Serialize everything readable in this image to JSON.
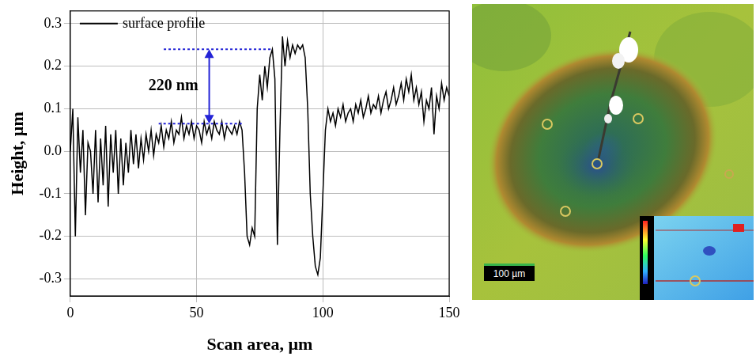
{
  "chart_data": {
    "type": "line",
    "x_label": "Scan area, µm",
    "y_label": "Height, µm",
    "xlim": [
      0,
      150
    ],
    "xticks": [
      0,
      50,
      100,
      150
    ],
    "ylim": [
      -0.34,
      0.33
    ],
    "yticks": [
      -0.3,
      -0.2,
      -0.1,
      {
        "value": 0,
        "label": "0.0"
      },
      0.1,
      0.2,
      0.3
    ],
    "grid": true,
    "legend": "upper left",
    "x": [
      0,
      1,
      2,
      3,
      4,
      5,
      6,
      7,
      8,
      9,
      10,
      11,
      12,
      13,
      14,
      15,
      16,
      17,
      18,
      19,
      20,
      21,
      22,
      23,
      24,
      25,
      26,
      27,
      28,
      29,
      30,
      31,
      32,
      33,
      34,
      35,
      36,
      37,
      38,
      39,
      40,
      41,
      42,
      43,
      44,
      45,
      46,
      47,
      48,
      49,
      50,
      51,
      52,
      53,
      54,
      55,
      56,
      57,
      58,
      59,
      60,
      61,
      62,
      63,
      64,
      65,
      66,
      67,
      68,
      69,
      70,
      71,
      72,
      73,
      74,
      75,
      76,
      77,
      78,
      79,
      80,
      81,
      82,
      83,
      84,
      85,
      86,
      87,
      88,
      89,
      90,
      91,
      92,
      93,
      94,
      95,
      96,
      97,
      98,
      99,
      100,
      101,
      102,
      103,
      104,
      105,
      106,
      107,
      108,
      109,
      110,
      111,
      112,
      113,
      114,
      115,
      116,
      117,
      118,
      119,
      120,
      121,
      122,
      123,
      124,
      125,
      126,
      127,
      128,
      129,
      130,
      131,
      132,
      133,
      134,
      135,
      136,
      137,
      138,
      139,
      140,
      141,
      142,
      143,
      144,
      145,
      146,
      147,
      148,
      149,
      150
    ],
    "series": [
      {
        "name": "surface profile",
        "color": "#000000",
        "values": [
          0.0,
          0.1,
          -0.2,
          0.08,
          -0.05,
          0.05,
          -0.15,
          0.02,
          0.0,
          -0.1,
          0.05,
          -0.12,
          0.03,
          -0.08,
          0.06,
          -0.13,
          0.04,
          -0.05,
          0.05,
          -0.1,
          0.03,
          -0.08,
          0.02,
          -0.05,
          0.05,
          -0.03,
          0.04,
          -0.04,
          0.03,
          -0.02,
          0.04,
          0.0,
          0.05,
          -0.01,
          0.04,
          0.02,
          0.06,
          0.01,
          0.05,
          0.03,
          0.07,
          0.02,
          0.05,
          0.04,
          0.08,
          0.03,
          0.06,
          0.04,
          0.07,
          0.03,
          0.06,
          0.05,
          0.02,
          0.07,
          0.04,
          0.06,
          0.03,
          0.07,
          0.05,
          0.04,
          0.07,
          0.03,
          0.06,
          0.05,
          0.04,
          0.06,
          0.04,
          0.07,
          0.05,
          -0.05,
          -0.2,
          -0.22,
          -0.18,
          -0.2,
          0.1,
          0.18,
          0.12,
          0.2,
          0.15,
          0.22,
          0.24,
          0.17,
          -0.22,
          0.05,
          0.27,
          0.2,
          0.26,
          0.22,
          0.25,
          0.23,
          0.25,
          0.24,
          0.25,
          0.22,
          0.1,
          -0.1,
          -0.2,
          -0.27,
          -0.29,
          -0.25,
          -0.1,
          0.05,
          0.1,
          0.07,
          0.09,
          0.06,
          0.1,
          0.08,
          0.11,
          0.07,
          0.09,
          0.1,
          0.07,
          0.11,
          0.09,
          0.12,
          0.08,
          0.1,
          0.13,
          0.09,
          0.11,
          0.1,
          0.13,
          0.09,
          0.12,
          0.14,
          0.1,
          0.12,
          0.15,
          0.11,
          0.13,
          0.16,
          0.12,
          0.17,
          0.14,
          0.18,
          0.12,
          0.15,
          0.11,
          0.14,
          0.07,
          0.12,
          0.1,
          0.15,
          0.04,
          0.13,
          0.1,
          0.16,
          0.12,
          0.15,
          0.13
        ]
      }
    ],
    "annotation": {
      "text": "220 nm",
      "x": 55,
      "y_top": 0.24,
      "y_bottom": 0.065,
      "top_line": [
        37,
        80
      ],
      "bottom_line": [
        35,
        68
      ],
      "color": "#2323d6"
    }
  },
  "image": {
    "scale_bar_label": "100 µm"
  }
}
